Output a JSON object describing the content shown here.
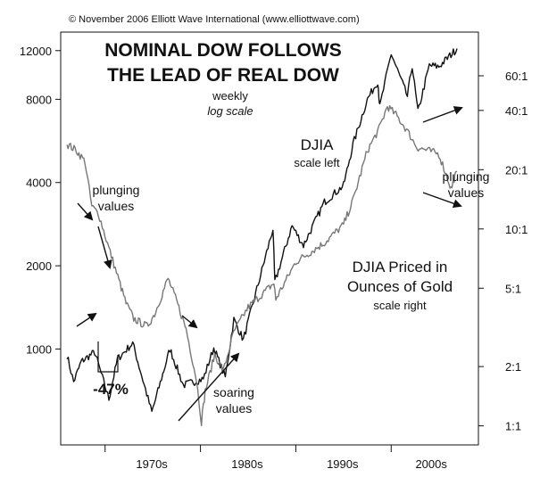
{
  "chart_data": {
    "type": "line",
    "copyright": "© November 2006 Elliott Wave International (www.elliottwave.com)",
    "title_lines": [
      "NOMINAL DOW FOLLOWS",
      "THE LEAD OF REAL DOW"
    ],
    "subtitle": "weekly",
    "scale_note": "log scale",
    "x_ticks": [
      "1970s",
      "1980s",
      "1990s",
      "2000s"
    ],
    "left_axis": {
      "scale": "log",
      "range": [
        450,
        14000
      ],
      "ticks": [
        {
          "label": "12000",
          "value": 12000
        },
        {
          "label": "8000",
          "value": 8000
        },
        {
          "label": "4000",
          "value": 4000
        },
        {
          "label": "2000",
          "value": 2000
        },
        {
          "label": "1000",
          "value": 1000
        }
      ]
    },
    "right_axis": {
      "scale": "log",
      "range": [
        0.8,
        100
      ],
      "ticks": [
        {
          "label": "60:1",
          "value": 60
        },
        {
          "label": "40:1",
          "value": 40
        },
        {
          "label": "20:1",
          "value": 20
        },
        {
          "label": "10:1",
          "value": 10
        },
        {
          "label": "5:1",
          "value": 5
        },
        {
          "label": "2:1",
          "value": 2
        },
        {
          "label": "1:1",
          "value": 1
        }
      ]
    },
    "series": [
      {
        "name": "DJIA",
        "note": "scale left",
        "axis": "left",
        "color": "#111111",
        "points": [
          [
            1966.0,
            950
          ],
          [
            1966.7,
            760
          ],
          [
            1967.5,
            900
          ],
          [
            1968.9,
            975
          ],
          [
            1970.4,
            660
          ],
          [
            1971.3,
            920
          ],
          [
            1972.9,
            1050
          ],
          [
            1974.9,
            590
          ],
          [
            1976.8,
            1000
          ],
          [
            1978.2,
            740
          ],
          [
            1980.3,
            780
          ],
          [
            1981.4,
            1010
          ],
          [
            1982.6,
            790
          ],
          [
            1983.5,
            1280
          ],
          [
            1984.5,
            1080
          ],
          [
            1987.6,
            2720
          ],
          [
            1987.8,
            1740
          ],
          [
            1989.6,
            2790
          ],
          [
            1990.8,
            2370
          ],
          [
            1993.0,
            3400
          ],
          [
            1995.0,
            3900
          ],
          [
            1996.0,
            5500
          ],
          [
            1997.5,
            8000
          ],
          [
            1998.6,
            9300
          ],
          [
            1998.8,
            7500
          ],
          [
            2000.0,
            11700
          ],
          [
            2001.7,
            8200
          ],
          [
            2002.2,
            10600
          ],
          [
            2002.8,
            7200
          ],
          [
            2004.0,
            10600
          ],
          [
            2005.0,
            10500
          ],
          [
            2006.9,
            12200
          ]
        ]
      },
      {
        "name": "DJIA Priced in Ounces of Gold",
        "note": "scale right",
        "axis": "right",
        "color": "#777777",
        "points": [
          [
            1966.0,
            27
          ],
          [
            1967.0,
            25
          ],
          [
            1967.9,
            22
          ],
          [
            1968.6,
            13
          ],
          [
            1969.3,
            12
          ],
          [
            1970.4,
            8
          ],
          [
            1971.2,
            6
          ],
          [
            1972.2,
            4.2
          ],
          [
            1973.0,
            3.5
          ],
          [
            1974.4,
            3.2
          ],
          [
            1975.2,
            3.7
          ],
          [
            1976.6,
            5.6
          ],
          [
            1977.5,
            4.3
          ],
          [
            1978.5,
            3.1
          ],
          [
            1979.6,
            1.7
          ],
          [
            1980.1,
            1.05
          ],
          [
            1980.5,
            1.5
          ],
          [
            1981.5,
            2.3
          ],
          [
            1982.4,
            1.9
          ],
          [
            1983.5,
            3.0
          ],
          [
            1985.0,
            4.0
          ],
          [
            1987.7,
            5.3
          ],
          [
            1987.9,
            4.4
          ],
          [
            1990.0,
            6.8
          ],
          [
            1993.0,
            8.5
          ],
          [
            1995.0,
            10.5
          ],
          [
            1996.0,
            14
          ],
          [
            1997.5,
            25
          ],
          [
            1998.7,
            32
          ],
          [
            1999.6,
            42
          ],
          [
            2000.5,
            38
          ],
          [
            2001.6,
            32
          ],
          [
            2002.7,
            26
          ],
          [
            2003.9,
            25
          ],
          [
            2005.0,
            24
          ],
          [
            2006.3,
            16
          ],
          [
            2006.6,
            18
          ],
          [
            2006.9,
            19.5
          ]
        ]
      }
    ],
    "annotations": [
      {
        "id": "plunging-left",
        "lines": [
          "plunging",
          "values"
        ]
      },
      {
        "id": "plunging-right",
        "lines": [
          "plunging",
          "values"
        ]
      },
      {
        "id": "soaring",
        "lines": [
          "soaring",
          "values"
        ]
      },
      {
        "id": "decline-pct",
        "lines": [
          "-47%"
        ]
      }
    ],
    "series_labels": {
      "djia": "DJIA",
      "djia_note": "scale left",
      "gold_lines": [
        "DJIA Priced in",
        "Ounces of Gold"
      ],
      "gold_note": "scale right"
    }
  }
}
